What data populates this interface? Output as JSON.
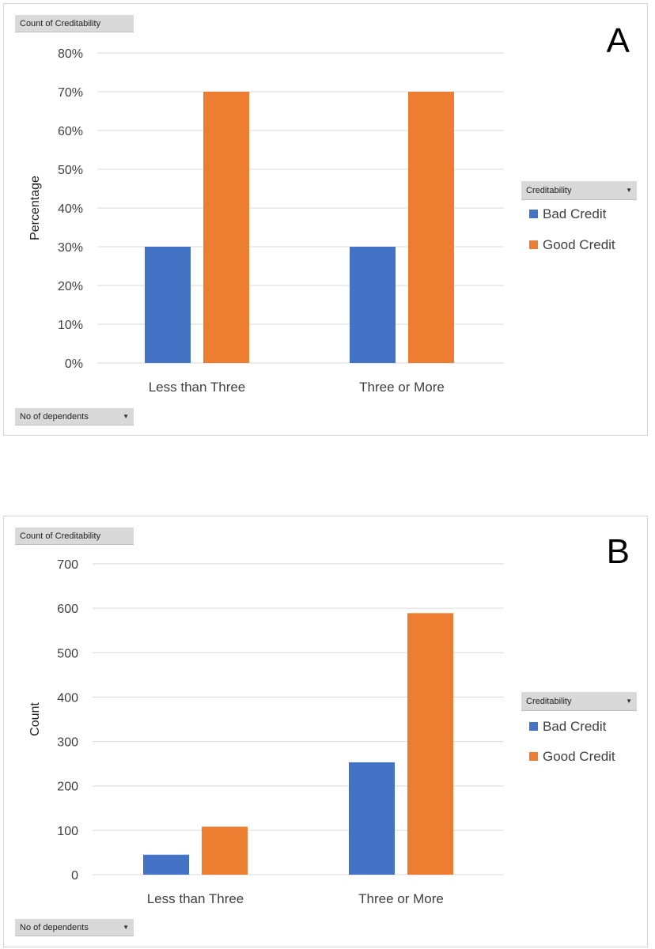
{
  "colors": {
    "bad": "#4472c4",
    "good": "#ed7d31",
    "grid": "#d9d9d9",
    "tick": "#404040"
  },
  "charts": [
    {
      "letter": "A",
      "values_field": "Count of Creditability",
      "axis_field": "No of dependents",
      "legend_field": "Creditability"
    },
    {
      "letter": "B",
      "values_field": "Count of Creditability",
      "axis_field": "No of dependents",
      "legend_field": "Creditability"
    }
  ],
  "chart_data": [
    {
      "type": "bar",
      "title": "",
      "categories": [
        "Less than Three",
        "Three or More"
      ],
      "series": [
        {
          "name": "Bad Credit",
          "values": [
            30,
            30
          ]
        },
        {
          "name": "Good Credit",
          "values": [
            70,
            70
          ]
        }
      ],
      "xlabel": "",
      "ylabel": "Percentage",
      "ylim": [
        0,
        80
      ],
      "yticks": [
        "0%",
        "10%",
        "20%",
        "30%",
        "40%",
        "50%",
        "60%",
        "70%",
        "80%"
      ],
      "legend": "right",
      "grid": true
    },
    {
      "type": "bar",
      "title": "",
      "categories": [
        "Less than Three",
        "Three or More"
      ],
      "series": [
        {
          "name": "Bad Credit",
          "values": [
            45,
            253
          ]
        },
        {
          "name": "Good Credit",
          "values": [
            108,
            589
          ]
        }
      ],
      "xlabel": "",
      "ylabel": "Count",
      "ylim": [
        0,
        700
      ],
      "yticks": [
        "0",
        "100",
        "200",
        "300",
        "400",
        "500",
        "600",
        "700"
      ],
      "legend": "right",
      "grid": true
    }
  ]
}
